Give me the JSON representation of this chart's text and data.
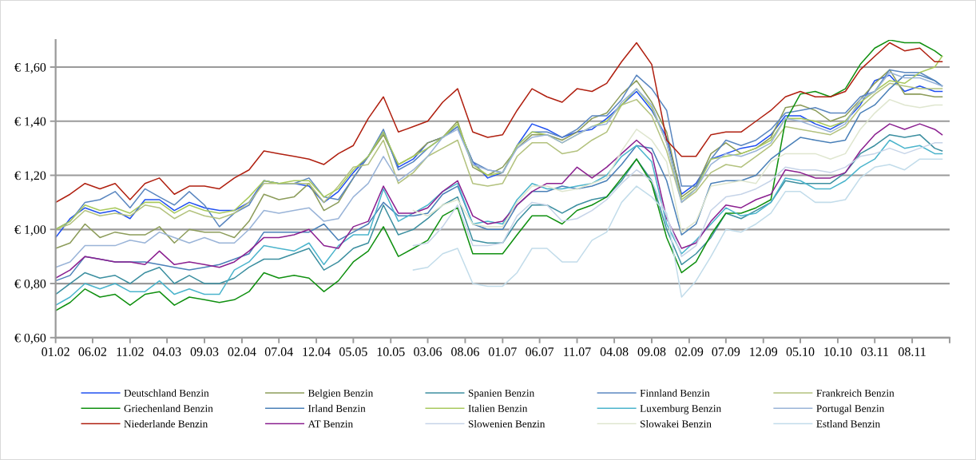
{
  "chart_data": {
    "type": "line",
    "grid": "y",
    "legend": "bottom",
    "marker": "none",
    "line_style": "solid",
    "ylim": [
      0.6,
      1.7
    ],
    "yticks": [
      {
        "value": 0.6,
        "label": "€ 0,60"
      },
      {
        "value": 0.8,
        "label": "€ 0,80"
      },
      {
        "value": 1.0,
        "label": "€ 1,00"
      },
      {
        "value": 1.2,
        "label": "€ 1,20"
      },
      {
        "value": 1.4,
        "label": "€ 1,40"
      },
      {
        "value": 1.6,
        "label": "€ 1,60"
      }
    ],
    "xlim": [
      "2002-01",
      "2012-01"
    ],
    "xticks": [
      {
        "value": "2002-01",
        "label": "01.02"
      },
      {
        "value": "2002-06",
        "label": "06.02"
      },
      {
        "value": "2002-11",
        "label": "11.02"
      },
      {
        "value": "2003-04",
        "label": "04.03"
      },
      {
        "value": "2003-09",
        "label": "09.03"
      },
      {
        "value": "2004-02",
        "label": "02.04"
      },
      {
        "value": "2004-07",
        "label": "07.04"
      },
      {
        "value": "2004-12",
        "label": "12.04"
      },
      {
        "value": "2005-05",
        "label": "05.05"
      },
      {
        "value": "2005-10",
        "label": "10.05"
      },
      {
        "value": "2006-03",
        "label": "03.06"
      },
      {
        "value": "2006-08",
        "label": "08.06"
      },
      {
        "value": "2007-01",
        "label": "01.07"
      },
      {
        "value": "2007-06",
        "label": "06.07"
      },
      {
        "value": "2007-11",
        "label": "11.07"
      },
      {
        "value": "2008-04",
        "label": "04.08"
      },
      {
        "value": "2008-09",
        "label": "09.08"
      },
      {
        "value": "2009-02",
        "label": "02.09"
      },
      {
        "value": "2009-07",
        "label": "07.09"
      },
      {
        "value": "2009-12",
        "label": "12.09"
      },
      {
        "value": "2010-05",
        "label": "05.10"
      },
      {
        "value": "2010-10",
        "label": "10.10"
      },
      {
        "value": "2011-03",
        "label": "03.11"
      },
      {
        "value": "2011-08",
        "label": "08.11"
      },
      {
        "value": "2012-01",
        "label": null
      }
    ],
    "x": [
      "2002-01",
      "2002-03",
      "2002-05",
      "2002-07",
      "2002-09",
      "2002-11",
      "2003-01",
      "2003-03",
      "2003-05",
      "2003-07",
      "2003-09",
      "2003-11",
      "2004-01",
      "2004-03",
      "2004-05",
      "2004-07",
      "2004-09",
      "2004-11",
      "2005-01",
      "2005-03",
      "2005-05",
      "2005-07",
      "2005-09",
      "2005-11",
      "2006-01",
      "2006-03",
      "2006-05",
      "2006-07",
      "2006-09",
      "2006-11",
      "2007-01",
      "2007-03",
      "2007-05",
      "2007-07",
      "2007-09",
      "2007-11",
      "2008-01",
      "2008-03",
      "2008-05",
      "2008-07",
      "2008-09",
      "2008-11",
      "2009-01",
      "2009-03",
      "2009-05",
      "2009-07",
      "2009-09",
      "2009-11",
      "2010-01",
      "2010-03",
      "2010-05",
      "2010-07",
      "2010-09",
      "2010-11",
      "2011-01",
      "2011-03",
      "2011-05",
      "2011-07",
      "2011-09",
      "2011-11",
      "2011-12"
    ],
    "series": [
      {
        "name": "Deutschland Benzin",
        "color": "#2050f0",
        "values": [
          0.97,
          1.04,
          1.08,
          1.06,
          1.07,
          1.04,
          1.11,
          1.11,
          1.07,
          1.1,
          1.08,
          1.07,
          1.07,
          1.1,
          1.18,
          1.17,
          1.17,
          1.16,
          1.1,
          1.14,
          1.21,
          1.27,
          1.36,
          1.23,
          1.26,
          1.32,
          1.34,
          1.38,
          1.25,
          1.19,
          1.21,
          1.31,
          1.39,
          1.37,
          1.34,
          1.36,
          1.37,
          1.41,
          1.46,
          1.51,
          1.44,
          1.34,
          1.13,
          1.17,
          1.26,
          1.28,
          1.3,
          1.31,
          1.35,
          1.42,
          1.42,
          1.39,
          1.37,
          1.4,
          1.46,
          1.55,
          1.57,
          1.51,
          1.53,
          1.51,
          1.51
        ]
      },
      {
        "name": "Belgien Benzin",
        "color": "#8c9c5a",
        "values": [
          0.93,
          0.95,
          1.02,
          0.97,
          0.99,
          0.98,
          0.98,
          1.01,
          0.95,
          1.0,
          0.99,
          0.99,
          0.97,
          1.03,
          1.13,
          1.11,
          1.12,
          1.17,
          1.07,
          1.1,
          1.19,
          1.27,
          1.35,
          1.24,
          1.27,
          1.32,
          1.34,
          1.4,
          1.23,
          1.2,
          1.23,
          1.3,
          1.35,
          1.35,
          1.33,
          1.36,
          1.41,
          1.43,
          1.5,
          1.55,
          1.47,
          1.36,
          1.12,
          1.16,
          1.28,
          1.32,
          1.28,
          1.3,
          1.34,
          1.45,
          1.46,
          1.44,
          1.4,
          1.42,
          1.48,
          1.54,
          1.59,
          1.5,
          1.5,
          1.49,
          1.49
        ]
      },
      {
        "name": "Spanien Benzin",
        "color": "#3c8fa0",
        "values": [
          0.76,
          0.8,
          0.84,
          0.82,
          0.83,
          0.8,
          0.84,
          0.86,
          0.8,
          0.83,
          0.8,
          0.8,
          0.82,
          0.86,
          0.89,
          0.89,
          0.91,
          0.93,
          0.85,
          0.88,
          0.93,
          0.95,
          1.09,
          0.98,
          1.0,
          1.04,
          1.09,
          1.12,
          0.96,
          0.95,
          0.95,
          1.03,
          1.09,
          1.09,
          1.06,
          1.09,
          1.11,
          1.12,
          1.18,
          1.26,
          1.18,
          1.0,
          0.87,
          0.91,
          0.97,
          1.06,
          1.04,
          1.07,
          1.1,
          1.18,
          1.17,
          1.17,
          1.17,
          1.21,
          1.28,
          1.31,
          1.35,
          1.34,
          1.35,
          1.3,
          1.29
        ]
      },
      {
        "name": "Finnland Benzin",
        "color": "#5b87c0",
        "values": [
          1.0,
          1.03,
          1.1,
          1.11,
          1.14,
          1.08,
          1.15,
          1.12,
          1.09,
          1.14,
          1.09,
          1.01,
          1.06,
          1.09,
          1.18,
          1.17,
          1.17,
          1.19,
          1.12,
          1.11,
          1.19,
          1.27,
          1.37,
          1.22,
          1.25,
          1.3,
          1.34,
          1.38,
          1.25,
          1.22,
          1.21,
          1.31,
          1.36,
          1.36,
          1.34,
          1.37,
          1.42,
          1.42,
          1.48,
          1.57,
          1.52,
          1.44,
          1.16,
          1.16,
          1.26,
          1.33,
          1.31,
          1.33,
          1.37,
          1.43,
          1.44,
          1.45,
          1.43,
          1.43,
          1.49,
          1.51,
          1.59,
          1.58,
          1.58,
          1.55,
          1.53
        ]
      },
      {
        "name": "Frankreich Benzin",
        "color": "#b3c27e",
        "values": [
          1.0,
          1.02,
          1.07,
          1.05,
          1.06,
          1.05,
          1.09,
          1.08,
          1.04,
          1.07,
          1.05,
          1.04,
          1.06,
          1.1,
          1.17,
          1.17,
          1.17,
          1.17,
          1.1,
          1.16,
          1.23,
          1.24,
          1.33,
          1.17,
          1.21,
          1.27,
          1.3,
          1.33,
          1.17,
          1.16,
          1.17,
          1.27,
          1.32,
          1.32,
          1.28,
          1.29,
          1.33,
          1.36,
          1.46,
          1.48,
          1.42,
          1.29,
          1.1,
          1.14,
          1.21,
          1.24,
          1.23,
          1.27,
          1.31,
          1.38,
          1.37,
          1.36,
          1.35,
          1.38,
          1.45,
          1.5,
          1.54,
          1.53,
          1.52,
          1.52,
          1.52
        ]
      },
      {
        "name": "Griechenland Benzin",
        "color": "#109010",
        "values": [
          0.7,
          0.73,
          0.78,
          0.75,
          0.76,
          0.72,
          0.76,
          0.77,
          0.72,
          0.75,
          0.74,
          0.73,
          0.74,
          0.77,
          0.84,
          0.82,
          0.83,
          0.82,
          0.77,
          0.81,
          0.88,
          0.92,
          1.01,
          0.9,
          0.93,
          0.96,
          1.05,
          1.08,
          0.91,
          0.91,
          0.91,
          0.98,
          1.05,
          1.05,
          1.02,
          1.07,
          1.09,
          1.12,
          1.19,
          1.26,
          1.17,
          0.97,
          0.84,
          0.88,
          0.98,
          1.06,
          1.06,
          1.08,
          1.11,
          1.4,
          1.5,
          1.51,
          1.49,
          1.52,
          1.61,
          1.67,
          1.7,
          1.69,
          1.69,
          1.66,
          1.64
        ]
      },
      {
        "name": "Irland Benzin",
        "color": "#4a80b8",
        "values": [
          0.81,
          0.83,
          0.9,
          0.89,
          0.88,
          0.88,
          0.88,
          0.87,
          0.86,
          0.85,
          0.86,
          0.87,
          0.89,
          0.91,
          0.99,
          0.99,
          0.99,
          0.99,
          1.02,
          0.96,
          0.99,
          1.02,
          1.1,
          1.05,
          1.05,
          1.06,
          1.13,
          1.16,
          1.02,
          1.0,
          1.0,
          1.09,
          1.14,
          1.14,
          1.16,
          1.15,
          1.16,
          1.18,
          1.24,
          1.31,
          1.3,
          1.18,
          0.98,
          1.02,
          1.17,
          1.18,
          1.18,
          1.2,
          1.26,
          1.3,
          1.34,
          1.33,
          1.32,
          1.33,
          1.43,
          1.46,
          1.52,
          1.57,
          1.57,
          1.55,
          1.53
        ]
      },
      {
        "name": "Italien Benzin",
        "color": "#a9c95e",
        "values": [
          1.0,
          1.03,
          1.09,
          1.07,
          1.08,
          1.06,
          1.1,
          1.1,
          1.06,
          1.09,
          1.07,
          1.06,
          1.07,
          1.12,
          1.18,
          1.17,
          1.18,
          1.18,
          1.12,
          1.15,
          1.22,
          1.27,
          1.36,
          1.24,
          1.27,
          1.3,
          1.34,
          1.39,
          1.24,
          1.2,
          1.21,
          1.31,
          1.36,
          1.35,
          1.32,
          1.35,
          1.38,
          1.4,
          1.46,
          1.52,
          1.45,
          1.32,
          1.11,
          1.15,
          1.26,
          1.27,
          1.28,
          1.3,
          1.33,
          1.41,
          1.41,
          1.4,
          1.38,
          1.4,
          1.47,
          1.51,
          1.55,
          1.54,
          1.58,
          1.6,
          1.64
        ]
      },
      {
        "name": "Luxemburg Benzin",
        "color": "#4bb4cc",
        "values": [
          0.72,
          0.75,
          0.8,
          0.78,
          0.8,
          0.77,
          0.77,
          0.81,
          0.76,
          0.78,
          0.76,
          0.76,
          0.85,
          0.88,
          0.94,
          0.93,
          0.92,
          0.95,
          0.87,
          0.94,
          0.98,
          0.98,
          1.15,
          1.03,
          1.06,
          1.09,
          1.14,
          1.17,
          1.02,
          1.03,
          1.02,
          1.11,
          1.17,
          1.15,
          1.15,
          1.16,
          1.17,
          1.2,
          1.27,
          1.31,
          1.25,
          1.02,
          0.91,
          0.96,
          1.02,
          1.08,
          1.05,
          1.06,
          1.1,
          1.19,
          1.18,
          1.15,
          1.15,
          1.18,
          1.23,
          1.26,
          1.33,
          1.3,
          1.31,
          1.28,
          1.28
        ]
      },
      {
        "name": "Portugal Benzin",
        "color": "#9ab4d8",
        "values": [
          0.86,
          0.88,
          0.94,
          0.94,
          0.94,
          0.96,
          0.95,
          0.99,
          0.97,
          0.95,
          0.97,
          0.95,
          0.95,
          1.0,
          1.07,
          1.06,
          1.07,
          1.08,
          1.03,
          1.04,
          1.12,
          1.17,
          1.27,
          1.18,
          1.22,
          1.27,
          1.34,
          1.37,
          1.24,
          1.22,
          1.21,
          1.3,
          1.34,
          1.35,
          1.32,
          1.35,
          1.38,
          1.39,
          1.47,
          1.52,
          1.46,
          1.32,
          1.1,
          1.15,
          1.24,
          1.28,
          1.27,
          1.29,
          1.32,
          1.41,
          1.4,
          1.38,
          1.36,
          1.39,
          1.48,
          1.51,
          1.58,
          1.56,
          1.56,
          1.54,
          1.53
        ]
      },
      {
        "name": "Niederlande Benzin",
        "color": "#b02010",
        "values": [
          1.1,
          1.13,
          1.17,
          1.15,
          1.17,
          1.11,
          1.17,
          1.19,
          1.13,
          1.16,
          1.16,
          1.15,
          1.19,
          1.22,
          1.29,
          1.28,
          1.27,
          1.26,
          1.24,
          1.28,
          1.31,
          1.41,
          1.49,
          1.36,
          1.38,
          1.4,
          1.47,
          1.52,
          1.36,
          1.34,
          1.35,
          1.44,
          1.52,
          1.49,
          1.47,
          1.52,
          1.51,
          1.54,
          1.62,
          1.69,
          1.61,
          1.33,
          1.27,
          1.27,
          1.35,
          1.36,
          1.36,
          1.4,
          1.44,
          1.49,
          1.51,
          1.49,
          1.49,
          1.51,
          1.59,
          1.64,
          1.69,
          1.66,
          1.67,
          1.62,
          1.62
        ]
      },
      {
        "name": "AT Benzin",
        "color": "#8b2090",
        "values": [
          0.82,
          0.85,
          0.9,
          0.89,
          0.88,
          0.88,
          0.87,
          0.92,
          0.87,
          0.88,
          0.87,
          0.86,
          0.88,
          0.92,
          0.97,
          0.97,
          0.98,
          1.0,
          0.94,
          0.93,
          1.01,
          1.03,
          1.16,
          1.06,
          1.06,
          1.08,
          1.14,
          1.18,
          1.05,
          1.02,
          1.03,
          1.09,
          1.14,
          1.17,
          1.17,
          1.23,
          1.19,
          1.23,
          1.28,
          1.33,
          1.28,
          1.04,
          0.93,
          0.95,
          1.03,
          1.09,
          1.08,
          1.11,
          1.13,
          1.22,
          1.21,
          1.19,
          1.19,
          1.21,
          1.29,
          1.35,
          1.39,
          1.37,
          1.39,
          1.37,
          1.35
        ]
      },
      {
        "name": "Slowenien Benzin",
        "color": "#c6d4e8",
        "values": [
          null,
          null,
          null,
          null,
          null,
          null,
          null,
          null,
          null,
          null,
          null,
          null,
          null,
          null,
          null,
          null,
          null,
          null,
          null,
          null,
          null,
          null,
          null,
          null,
          0.94,
          0.95,
          1.01,
          1.09,
          0.94,
          0.94,
          0.95,
          1.05,
          1.1,
          1.09,
          1.03,
          1.04,
          1.07,
          1.11,
          1.17,
          1.22,
          1.18,
          1.05,
          0.9,
          0.94,
          1.07,
          1.12,
          1.13,
          1.15,
          1.18,
          1.23,
          1.22,
          1.22,
          1.21,
          1.23,
          1.27,
          1.28,
          1.3,
          1.28,
          1.3,
          1.32,
          1.32
        ]
      },
      {
        "name": "Slowakei Benzin",
        "color": "#dfe6cf",
        "values": [
          null,
          null,
          null,
          null,
          null,
          null,
          null,
          null,
          null,
          null,
          null,
          null,
          null,
          null,
          null,
          null,
          null,
          null,
          null,
          null,
          null,
          null,
          null,
          null,
          1.07,
          1.05,
          1.09,
          1.11,
          1.02,
          1.01,
          1.01,
          1.1,
          1.16,
          1.16,
          1.14,
          1.15,
          1.17,
          1.19,
          1.29,
          1.37,
          1.33,
          1.25,
          0.99,
          1.03,
          1.16,
          1.17,
          1.18,
          1.17,
          1.25,
          1.28,
          1.28,
          1.28,
          1.26,
          1.28,
          1.37,
          1.43,
          1.48,
          1.46,
          1.45,
          1.46,
          1.46
        ]
      },
      {
        "name": "Estland Benzin",
        "color": "#c2dcea",
        "values": [
          null,
          null,
          null,
          null,
          null,
          null,
          null,
          null,
          null,
          null,
          null,
          null,
          null,
          null,
          null,
          null,
          null,
          null,
          null,
          null,
          null,
          null,
          null,
          null,
          0.85,
          0.86,
          0.91,
          0.93,
          0.8,
          0.79,
          0.79,
          0.84,
          0.93,
          0.93,
          0.88,
          0.88,
          0.96,
          0.99,
          1.1,
          1.16,
          1.12,
          1.06,
          0.75,
          0.81,
          0.9,
          1.0,
          0.99,
          1.02,
          1.06,
          1.14,
          1.14,
          1.1,
          1.1,
          1.11,
          1.19,
          1.23,
          1.24,
          1.22,
          1.26,
          1.26,
          1.26
        ]
      }
    ]
  }
}
